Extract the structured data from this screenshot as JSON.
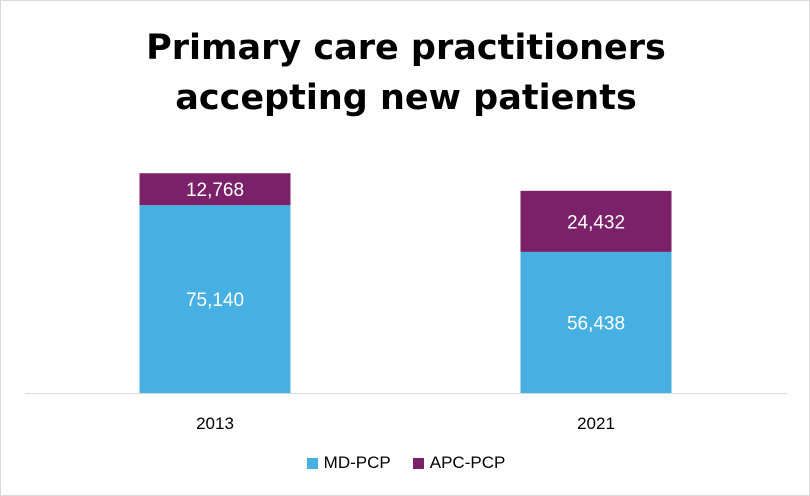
{
  "chart_data": {
    "type": "bar",
    "stacked": true,
    "title": "Primary care practitioners accepting new patients",
    "categories": [
      "2013",
      "2021"
    ],
    "series": [
      {
        "name": "MD-PCP",
        "values": [
          75140,
          56438
        ],
        "labels": [
          "75,140",
          "56,438"
        ],
        "color": "#47B0E2"
      },
      {
        "name": "APC-PCP",
        "values": [
          12768,
          24432
        ],
        "labels": [
          "12,768",
          "24,432"
        ],
        "color": "#7B2169"
      }
    ],
    "xlabel": "",
    "ylabel": "",
    "ylim": [
      0,
      100000
    ],
    "grid": false,
    "legend": "bottom"
  }
}
